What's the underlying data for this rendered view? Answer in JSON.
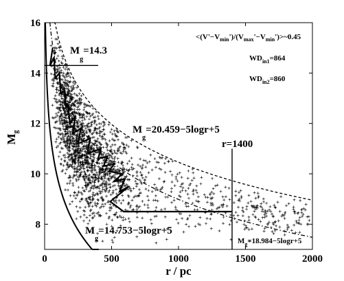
{
  "chart_data": {
    "type": "scatter",
    "title": "",
    "xlabel": "r / pc",
    "ylabel": "M_g",
    "xlim": [
      0,
      2000
    ],
    "ylim": [
      7,
      16
    ],
    "x_ticks": [
      0,
      500,
      1000,
      1500,
      2000
    ],
    "y_ticks": [
      8,
      10,
      12,
      14,
      16
    ],
    "grid": false,
    "legend": "none",
    "annotations": {
      "selection": "<(V'-V_min')/(V_max'-V_min')>~0.45",
      "wd_in1": "WD_in1=864",
      "wd_in2": "WD_in2=860",
      "mg_cut": "M_g=14.3",
      "r_cut": "r=1400",
      "curve_upper": "M_g=20.459-5logr+5",
      "curve_solid": "M_g=14.753-5logr+5",
      "curve_lower": "M_g=18.984-5logr+5"
    },
    "curves": [
      {
        "label": "M_g=20.459-5logr+5",
        "constant": 20.459,
        "style": "dashed"
      },
      {
        "label": "M_g=14.753-5logr+5",
        "constant": 14.753,
        "style": "solid"
      },
      {
        "label": "M_g=18.984-5logr+5",
        "constant": 18.984,
        "style": "dashdot"
      }
    ],
    "reference_lines": [
      {
        "orientation": "horizontal",
        "y": 14.3,
        "x_range": [
          0,
          400
        ]
      },
      {
        "orientation": "vertical",
        "x": 1400,
        "y_range": [
          7,
          11
        ]
      }
    ],
    "boundary_polyline": {
      "x": [
        60,
        40,
        70,
        80,
        110,
        120,
        150,
        160,
        170,
        190,
        230,
        210,
        270,
        250,
        340,
        320,
        420,
        400,
        470,
        440,
        520,
        480,
        580,
        520,
        600,
        560,
        630,
        490,
        590,
        1400
      ],
      "y": [
        15.0,
        14.3,
        14.6,
        13.8,
        14.0,
        13.2,
        13.3,
        12.6,
        12.8,
        12.0,
        12.3,
        11.6,
        11.8,
        11.2,
        11.4,
        10.8,
        11.0,
        10.6,
        10.7,
        10.3,
        10.4,
        10.1,
        10.0,
        9.7,
        9.8,
        9.3,
        9.5,
        8.9,
        8.5,
        8.5
      ]
    },
    "scatter": {
      "n_points": 2000,
      "x_range": [
        20,
        2000
      ],
      "note": "points lie between M_g=14.753-5logr+5 and M_g=20.459-5logr+5, densest near r=100-700 pc"
    }
  }
}
